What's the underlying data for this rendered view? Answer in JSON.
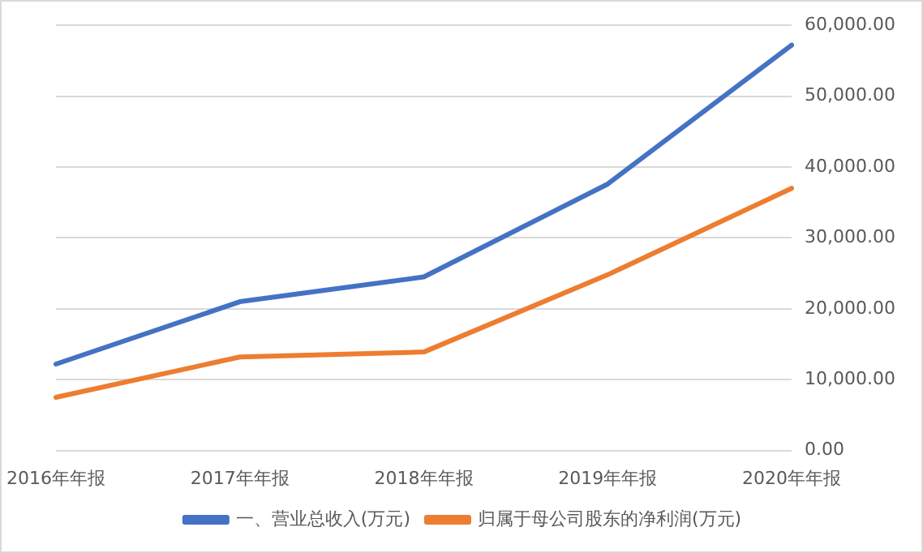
{
  "chart_data": {
    "type": "line",
    "categories": [
      "2016年年报",
      "2017年年报",
      "2018年年报",
      "2019年年报",
      "2020年年报"
    ],
    "series": [
      {
        "name": "一、营业总收入(万元)",
        "color": "#4472c4",
        "values": [
          12200,
          21000,
          24500,
          37600,
          57200
        ]
      },
      {
        "name": "归属于母公司股东的净利润(万元)",
        "color": "#ed7d31",
        "values": [
          7500,
          13200,
          13900,
          24800,
          37000
        ]
      }
    ],
    "ylim": [
      0,
      60000
    ],
    "yticks": [
      {
        "value": 0,
        "label": "0.00"
      },
      {
        "value": 10000,
        "label": "10,000.00"
      },
      {
        "value": 20000,
        "label": "20,000.00"
      },
      {
        "value": 30000,
        "label": "30,000.00"
      },
      {
        "value": 40000,
        "label": "40,000.00"
      },
      {
        "value": 50000,
        "label": "50,000.00"
      },
      {
        "value": 60000,
        "label": "60,000.00"
      }
    ],
    "grid": "y",
    "legend": "bottom",
    "marker": "none",
    "line_style": "solid"
  }
}
